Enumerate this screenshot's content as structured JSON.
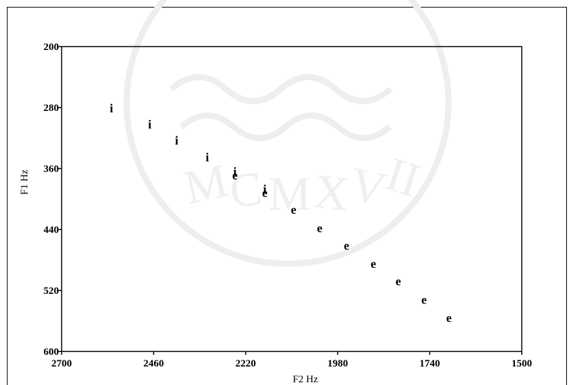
{
  "chart_data": {
    "type": "scatter",
    "xlabel": "F2 Hz",
    "ylabel": "F1 Hz",
    "xlim": [
      2700,
      1500
    ],
    "ylim": [
      600,
      200
    ],
    "x_ticks": [
      2700,
      2460,
      2220,
      1980,
      1740,
      1500
    ],
    "y_ticks": [
      200,
      280,
      360,
      440,
      520,
      600
    ],
    "x_reversed": true,
    "y_reversed": true,
    "grid": false,
    "points": [
      {
        "label": "i",
        "x": 2570,
        "y": 281
      },
      {
        "label": "i",
        "x": 2470,
        "y": 302
      },
      {
        "label": "i",
        "x": 2400,
        "y": 323
      },
      {
        "label": "i",
        "x": 2320,
        "y": 345
      },
      {
        "label": "i",
        "x": 2248,
        "y": 364
      },
      {
        "label": "e",
        "x": 2248,
        "y": 369
      },
      {
        "label": "i",
        "x": 2170,
        "y": 387
      },
      {
        "label": "e",
        "x": 2170,
        "y": 392
      },
      {
        "label": "e",
        "x": 2095,
        "y": 414
      },
      {
        "label": "e",
        "x": 2027,
        "y": 438
      },
      {
        "label": "e",
        "x": 1957,
        "y": 461
      },
      {
        "label": "e",
        "x": 1887,
        "y": 485
      },
      {
        "label": "e",
        "x": 1822,
        "y": 508
      },
      {
        "label": "e",
        "x": 1755,
        "y": 532
      },
      {
        "label": "e",
        "x": 1690,
        "y": 556
      }
    ]
  }
}
